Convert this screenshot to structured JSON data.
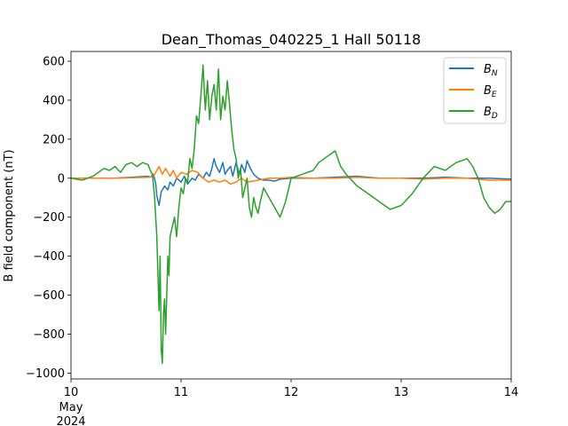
{
  "chart_data": {
    "type": "line",
    "title": "Dean_Thomas_040225_1 Hall 50118",
    "xlabel": "",
    "ylabel": "B field component (nT)",
    "x_ticks": [
      {
        "value": 0,
        "label": "10",
        "sublabels": [
          "May",
          "2024"
        ]
      },
      {
        "value": 1,
        "label": "11",
        "sublabels": []
      },
      {
        "value": 2,
        "label": "12",
        "sublabels": []
      },
      {
        "value": 3,
        "label": "13",
        "sublabels": []
      },
      {
        "value": 4,
        "label": "14",
        "sublabels": []
      }
    ],
    "xlim": [
      0,
      4
    ],
    "x_unit": "days since 10 May 2024",
    "y_ticks": [
      600,
      400,
      200,
      0,
      -200,
      -400,
      -600,
      -800,
      -1000
    ],
    "y_tick_labels": [
      "600",
      "400",
      "200",
      "0",
      "−200",
      "−400",
      "−600",
      "−800",
      "−1000"
    ],
    "ylim": [
      -1030,
      650
    ],
    "legend_position": "top-right",
    "grid": false,
    "series": [
      {
        "name": "B",
        "subscript": "N",
        "color": "#1f77b4",
        "x": [
          0.0,
          0.4,
          0.7,
          0.72,
          0.75,
          0.77,
          0.78,
          0.8,
          0.82,
          0.85,
          0.88,
          0.9,
          0.93,
          0.96,
          1.0,
          1.03,
          1.06,
          1.1,
          1.13,
          1.16,
          1.2,
          1.23,
          1.26,
          1.28,
          1.3,
          1.32,
          1.35,
          1.38,
          1.4,
          1.42,
          1.45,
          1.47,
          1.5,
          1.53,
          1.55,
          1.58,
          1.6,
          1.63,
          1.66,
          1.7,
          1.75,
          1.8,
          1.85,
          1.9,
          2.0,
          2.2,
          2.4,
          2.6,
          2.8,
          3.0,
          3.2,
          3.4,
          3.6,
          3.8,
          4.0
        ],
        "values": [
          0,
          0,
          10,
          5,
          20,
          -30,
          -90,
          -140,
          -70,
          -40,
          -60,
          -20,
          -40,
          0,
          -20,
          10,
          -30,
          0,
          -10,
          20,
          0,
          30,
          10,
          50,
          100,
          60,
          30,
          80,
          20,
          40,
          60,
          10,
          80,
          20,
          70,
          30,
          90,
          50,
          20,
          0,
          -10,
          -10,
          -15,
          -5,
          0,
          0,
          5,
          10,
          0,
          0,
          0,
          5,
          0,
          0,
          -5
        ]
      },
      {
        "name": "B",
        "subscript": "E",
        "color": "#ff7f0e",
        "x": [
          0.0,
          0.4,
          0.7,
          0.75,
          0.78,
          0.8,
          0.83,
          0.86,
          0.9,
          0.93,
          0.96,
          1.0,
          1.05,
          1.1,
          1.15,
          1.2,
          1.25,
          1.3,
          1.35,
          1.4,
          1.45,
          1.5,
          1.55,
          1.6,
          1.7,
          1.8,
          1.9,
          2.0,
          2.2,
          2.4,
          2.6,
          2.8,
          3.0,
          3.2,
          3.4,
          3.6,
          3.8,
          4.0
        ],
        "values": [
          0,
          0,
          5,
          10,
          40,
          60,
          20,
          50,
          10,
          40,
          0,
          30,
          20,
          40,
          30,
          0,
          -20,
          -10,
          -20,
          -10,
          -30,
          -20,
          0,
          -20,
          -10,
          0,
          0,
          5,
          0,
          0,
          5,
          0,
          0,
          -5,
          0,
          0,
          -10,
          -10
        ]
      },
      {
        "name": "B",
        "subscript": "D",
        "color": "#2ca02c",
        "x": [
          0.0,
          0.1,
          0.2,
          0.25,
          0.3,
          0.35,
          0.4,
          0.45,
          0.5,
          0.55,
          0.6,
          0.65,
          0.7,
          0.72,
          0.74,
          0.76,
          0.78,
          0.79,
          0.8,
          0.81,
          0.82,
          0.83,
          0.84,
          0.85,
          0.86,
          0.87,
          0.88,
          0.89,
          0.9,
          0.92,
          0.94,
          0.96,
          0.98,
          1.0,
          1.02,
          1.04,
          1.06,
          1.08,
          1.1,
          1.12,
          1.14,
          1.16,
          1.18,
          1.2,
          1.22,
          1.24,
          1.26,
          1.28,
          1.3,
          1.32,
          1.34,
          1.36,
          1.38,
          1.4,
          1.42,
          1.44,
          1.46,
          1.48,
          1.5,
          1.52,
          1.54,
          1.56,
          1.58,
          1.6,
          1.62,
          1.64,
          1.66,
          1.68,
          1.7,
          1.72,
          1.75,
          1.8,
          1.85,
          1.9,
          1.95,
          2.0,
          2.1,
          2.2,
          2.25,
          2.3,
          2.35,
          2.4,
          2.45,
          2.5,
          2.6,
          2.7,
          2.8,
          2.9,
          3.0,
          3.1,
          3.2,
          3.3,
          3.4,
          3.5,
          3.6,
          3.65,
          3.7,
          3.75,
          3.8,
          3.85,
          3.9,
          3.95,
          4.0
        ],
        "values": [
          0,
          -10,
          10,
          30,
          50,
          40,
          60,
          30,
          70,
          80,
          60,
          80,
          70,
          40,
          20,
          -100,
          -300,
          -500,
          -680,
          -400,
          -880,
          -950,
          -700,
          -620,
          -800,
          -600,
          -400,
          -500,
          -300,
          -250,
          -200,
          -300,
          -150,
          -50,
          -80,
          0,
          -20,
          100,
          50,
          150,
          320,
          280,
          420,
          580,
          350,
          500,
          300,
          420,
          480,
          350,
          560,
          300,
          420,
          350,
          500,
          380,
          250,
          150,
          100,
          0,
          50,
          -100,
          -50,
          0,
          -150,
          -200,
          -100,
          -150,
          -180,
          -120,
          -50,
          -100,
          -150,
          -200,
          -120,
          0,
          20,
          40,
          80,
          100,
          120,
          140,
          60,
          20,
          -40,
          -80,
          -120,
          -160,
          -140,
          -80,
          0,
          60,
          40,
          80,
          100,
          60,
          0,
          -100,
          -150,
          -180,
          -160,
          -120,
          -120
        ]
      }
    ]
  }
}
